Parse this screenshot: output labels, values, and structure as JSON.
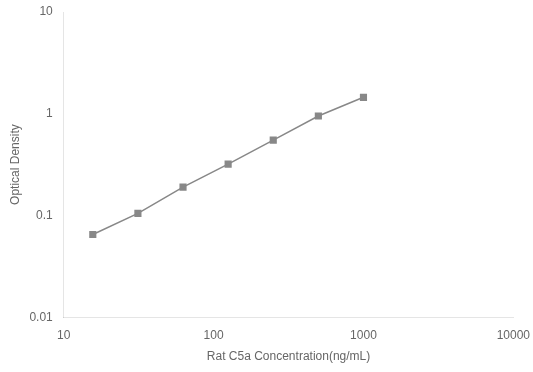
{
  "chart_data": {
    "type": "line",
    "x": [
      15.625,
      31.25,
      62.5,
      125,
      250,
      500,
      1000
    ],
    "values": [
      0.065,
      0.105,
      0.19,
      0.32,
      0.55,
      0.95,
      1.45
    ],
    "xlabel": "Rat C5a Concentration(ng/mL)",
    "ylabel": "Optical Density",
    "xlim": [
      10,
      10000
    ],
    "ylim": [
      0.01,
      10
    ],
    "xticks": [
      10,
      100,
      1000,
      10000
    ],
    "yticks": [
      0.01,
      0.1,
      1,
      10
    ],
    "log": true,
    "grid": false,
    "color": "#888888",
    "marker": "square"
  }
}
